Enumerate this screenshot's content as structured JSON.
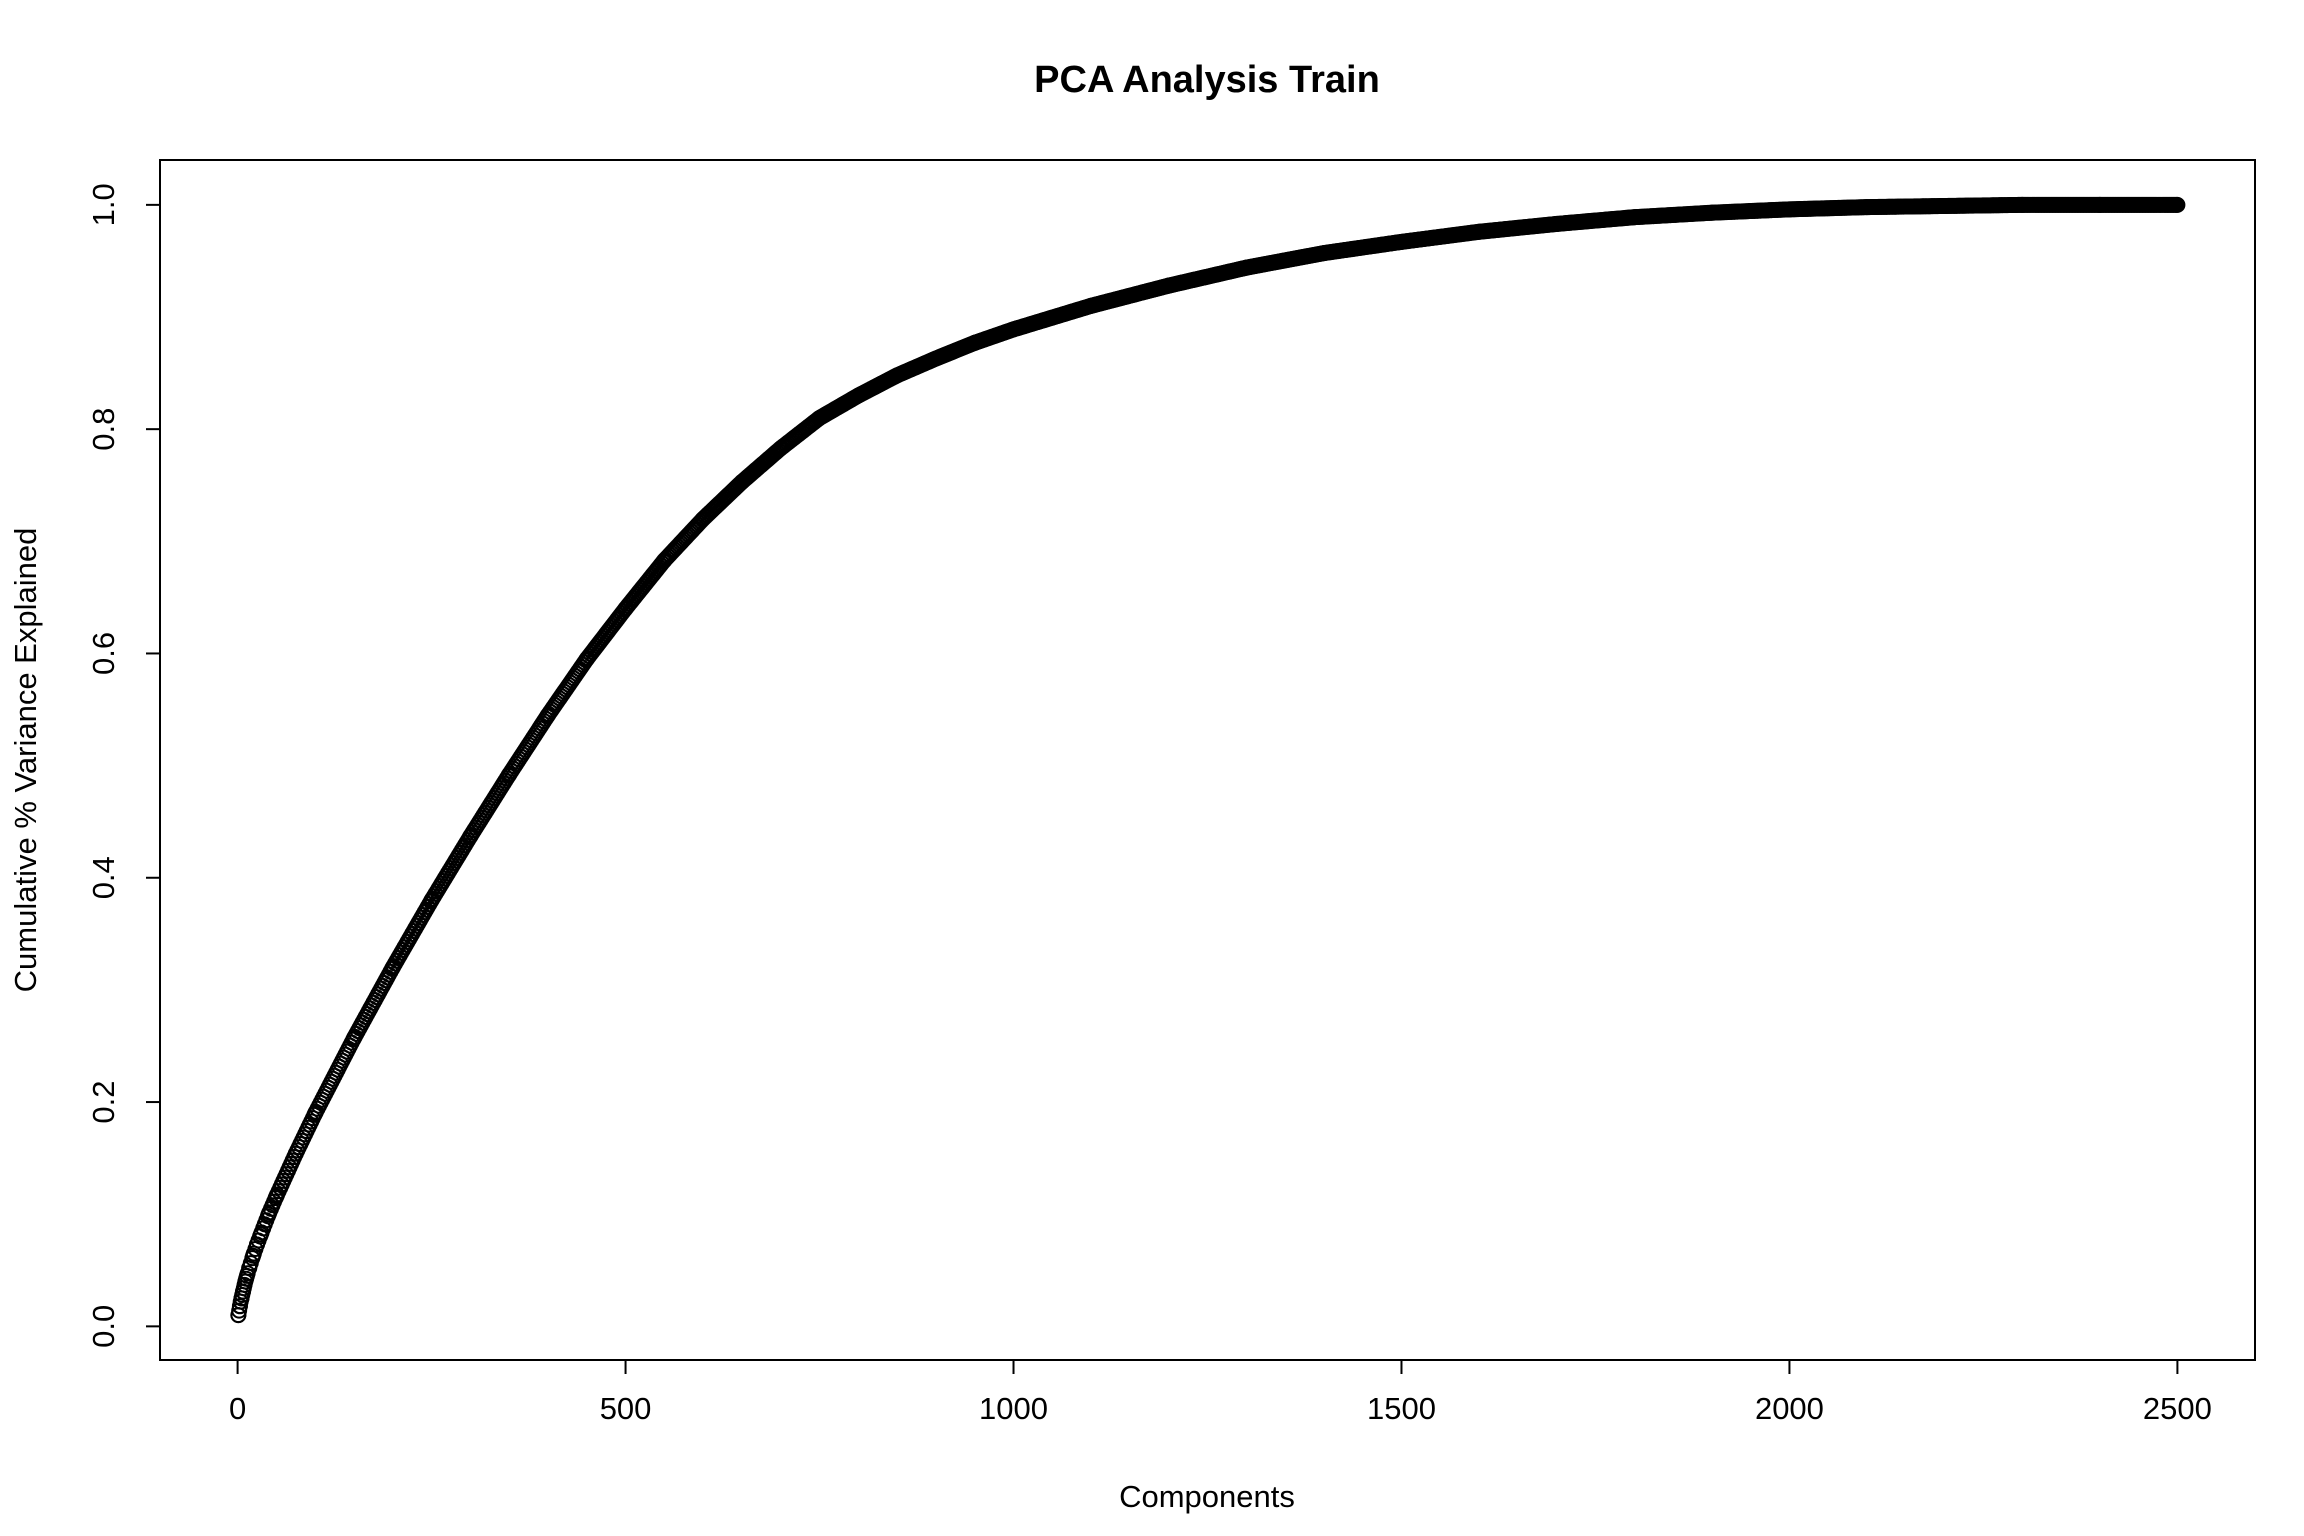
{
  "chart_data": {
    "type": "scatter",
    "title": "PCA Analysis Train",
    "xlabel": "Components",
    "ylabel": "Cumulative % Variance Explained",
    "xlim": [
      -100,
      2600
    ],
    "ylim": [
      -0.03,
      1.04
    ],
    "x_ticks": [
      0,
      500,
      1000,
      1500,
      2000,
      2500
    ],
    "x_tick_labels": [
      "0",
      "500",
      "1000",
      "1500",
      "2000",
      "2500"
    ],
    "y_ticks": [
      0.0,
      0.2,
      0.4,
      0.6,
      0.8,
      1.0
    ],
    "y_tick_labels": [
      "0.0",
      "0.2",
      "0.4",
      "0.6",
      "0.8",
      "1.0"
    ],
    "grid": false,
    "legend": "none",
    "marker": "open-circle",
    "marker_color": "#000000",
    "x_range_note": "components 1 to 2500",
    "series": [
      {
        "x": [
          1,
          2,
          3,
          4,
          5,
          6,
          7,
          8,
          10,
          12,
          15,
          20,
          25,
          30,
          40,
          50,
          75,
          100,
          150,
          200,
          250,
          300,
          350,
          400,
          450,
          500,
          550,
          600,
          650,
          700,
          750,
          800,
          850,
          900,
          950,
          1000,
          1100,
          1200,
          1300,
          1400,
          1500,
          1600,
          1700,
          1800,
          1900,
          2000,
          2100,
          2200,
          2300,
          2400,
          2500
        ],
        "y": [
          0.01,
          0.014,
          0.018,
          0.022,
          0.025,
          0.028,
          0.031,
          0.034,
          0.04,
          0.045,
          0.052,
          0.063,
          0.073,
          0.082,
          0.1,
          0.116,
          0.154,
          0.19,
          0.257,
          0.32,
          0.38,
          0.437,
          0.492,
          0.545,
          0.595,
          0.64,
          0.683,
          0.72,
          0.753,
          0.783,
          0.81,
          0.83,
          0.848,
          0.863,
          0.877,
          0.889,
          0.91,
          0.928,
          0.944,
          0.957,
          0.967,
          0.976,
          0.983,
          0.989,
          0.993,
          0.996,
          0.998,
          0.999,
          1.0,
          1.0,
          1.0
        ]
      }
    ]
  }
}
